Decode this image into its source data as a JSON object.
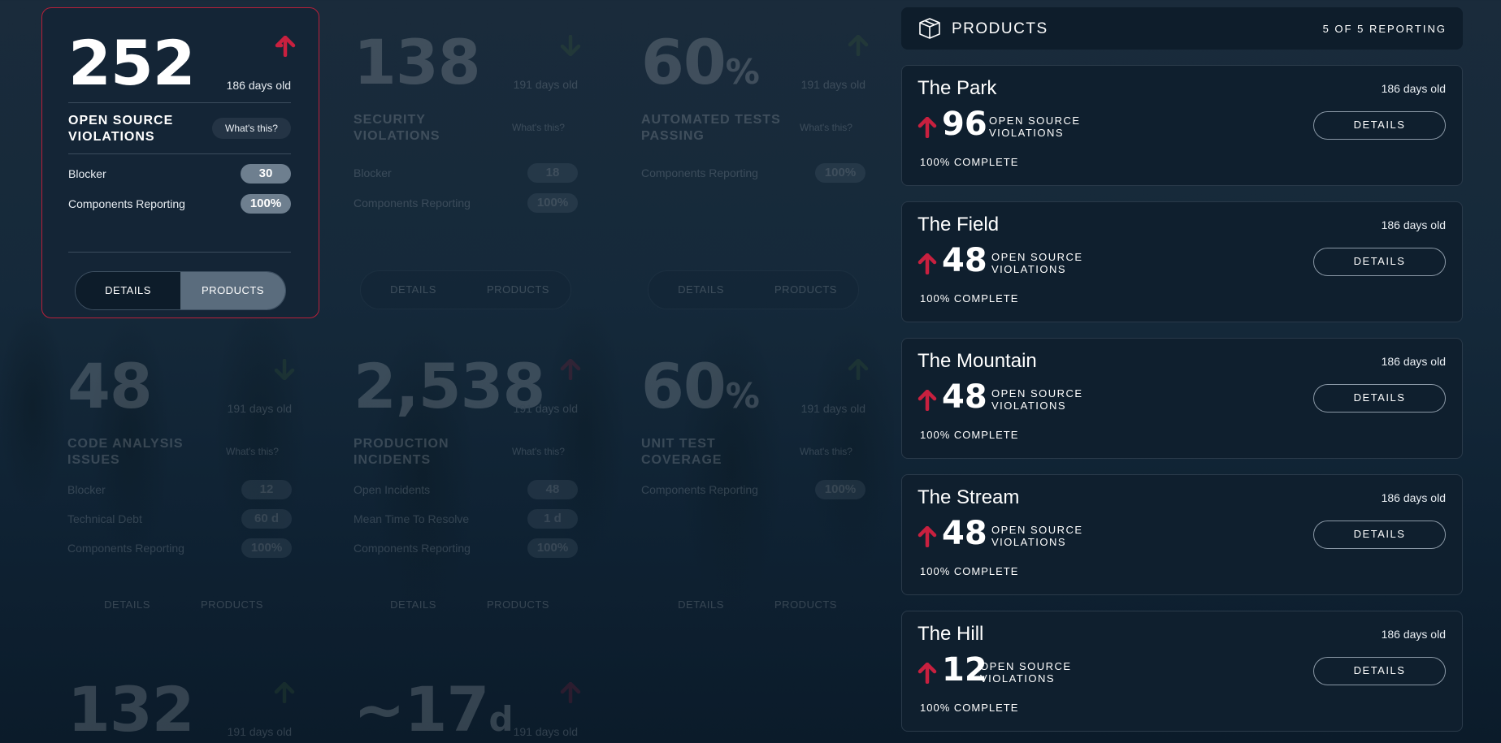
{
  "tiles": {
    "oss": {
      "value": "252",
      "age": "186 days old",
      "title": "OPEN SOURCE VIOLATIONS",
      "whats": "What's this?",
      "rows": [
        {
          "label": "Blocker",
          "value": "30"
        },
        {
          "label": "Components Reporting",
          "value": "100%"
        }
      ],
      "details": "DETAILS",
      "products": "PRODUCTS"
    },
    "security": {
      "value": "138",
      "age": "191 days old",
      "title": "SECURITY VIOLATIONS",
      "whats": "What's this?",
      "rows": [
        {
          "label": "Blocker",
          "value": "18"
        },
        {
          "label": "Components Reporting",
          "value": "100%"
        }
      ],
      "details": "DETAILS",
      "products": "PRODUCTS"
    },
    "autotests": {
      "value": "60",
      "unit": "%",
      "age": "191 days old",
      "title": "AUTOMATED TESTS PASSING",
      "whats": "What's this?",
      "rows": [
        {
          "label": "Components Reporting",
          "value": "100%"
        }
      ],
      "details": "DETAILS",
      "products": "PRODUCTS"
    },
    "codeanalysis": {
      "value": "48",
      "age": "191 days old",
      "title": "CODE ANALYSIS ISSUES",
      "whats": "What's this?",
      "rows": [
        {
          "label": "Blocker",
          "value": "12"
        },
        {
          "label": "Technical Debt",
          "value": "60 d"
        },
        {
          "label": "Components Reporting",
          "value": "100%"
        }
      ],
      "details": "DETAILS",
      "products": "PRODUCTS"
    },
    "incidents": {
      "value": "2,538",
      "age": "191 days old",
      "title": "PRODUCTION INCIDENTS",
      "whats": "What's this?",
      "rows": [
        {
          "label": "Open Incidents",
          "value": "48"
        },
        {
          "label": "Mean Time To Resolve",
          "value": "1 d"
        },
        {
          "label": "Components Reporting",
          "value": "100%"
        }
      ],
      "details": "DETAILS",
      "products": "PRODUCTS"
    },
    "unittest": {
      "value": "60",
      "unit": "%",
      "age": "191 days old",
      "title": "UNIT TEST COVERAGE",
      "whats": "What's this?",
      "rows": [
        {
          "label": "Components Reporting",
          "value": "100%"
        }
      ],
      "details": "DETAILS",
      "products": "PRODUCTS"
    },
    "bottom1": {
      "value": "132",
      "age": "191 days old"
    },
    "bottom2": {
      "value": "~17",
      "unit": "d",
      "age": "191 days old"
    }
  },
  "products_panel": {
    "title": "PRODUCTS",
    "count": "5 OF 5 REPORTING",
    "items": [
      {
        "name": "The Park",
        "age": "186 days old",
        "value": "96",
        "desc1": "OPEN SOURCE",
        "desc2": "VIOLATIONS",
        "complete": "100% COMPLETE",
        "button": "DETAILS"
      },
      {
        "name": "The Field",
        "age": "186 days old",
        "value": "48",
        "desc1": "OPEN SOURCE",
        "desc2": "VIOLATIONS",
        "complete": "100% COMPLETE",
        "button": "DETAILS"
      },
      {
        "name": "The Mountain",
        "age": "186 days old",
        "value": "48",
        "desc1": "OPEN SOURCE",
        "desc2": "VIOLATIONS",
        "complete": "100% COMPLETE",
        "button": "DETAILS"
      },
      {
        "name": "The Stream",
        "age": "186 days old",
        "value": "48",
        "desc1": "OPEN SOURCE",
        "desc2": "VIOLATIONS",
        "complete": "100% COMPLETE",
        "button": "DETAILS"
      },
      {
        "name": "The Hill",
        "age": "186 days old",
        "value": "12",
        "desc1": "OPEN SOURCE",
        "desc2": "VIOLATIONS",
        "complete": "100% COMPLETE",
        "button": "DETAILS"
      }
    ]
  },
  "colors": {
    "up_arrow": "#c8203f",
    "down_arrow": "#4f7a34",
    "accent_border": "#b8203a"
  },
  "icons": {
    "trend_up": "arrow-up-icon",
    "trend_down": "arrow-down-icon",
    "products": "box-icon"
  }
}
